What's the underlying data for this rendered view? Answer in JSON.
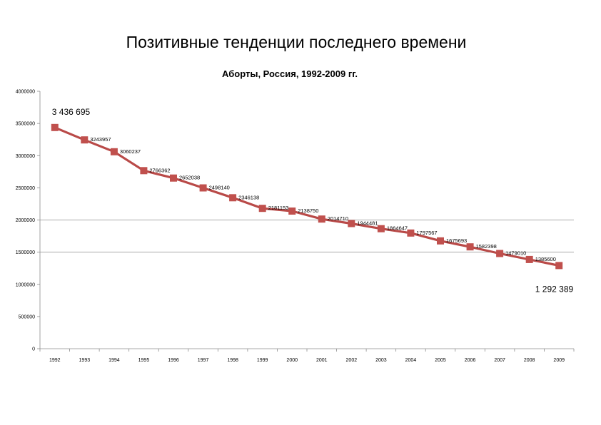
{
  "slide": {
    "title": "Позитивные тенденции последнего времени"
  },
  "colors": {
    "series": "#c0504d",
    "series_line": "#b94a48",
    "gridline": "#8c8c8c",
    "axis": "#8c8c8c"
  },
  "chart_data": {
    "type": "line",
    "title": "Аборты, Россия, 1992-2009 гг.",
    "xlabel": "",
    "ylabel": "",
    "categories": [
      "1992",
      "1993",
      "1994",
      "1995",
      "1996",
      "1997",
      "1998",
      "1999",
      "2000",
      "2001",
      "2002",
      "2003",
      "2004",
      "2005",
      "2006",
      "2007",
      "2008",
      "2009"
    ],
    "series": [
      {
        "values": [
          3436695,
          3243957,
          3060237,
          2766362,
          2652038,
          2498140,
          2346138,
          2181153,
          2138750,
          2014710,
          1944481,
          1864647,
          1797567,
          1675693,
          1582398,
          1479010,
          1385600,
          1292389
        ],
        "data_labels": [
          "",
          "3243957",
          "3060237",
          "2766362",
          "2652038",
          "2498140",
          "2346138",
          "2181153",
          "2138750",
          "2014710",
          "1944481",
          "1864647",
          "1797567",
          "1675693",
          "1582398",
          "1479010",
          "1385600",
          ""
        ],
        "marker": "square"
      }
    ],
    "ylim": [
      0,
      4000000
    ],
    "yticks": [
      0,
      500000,
      1000000,
      1500000,
      2000000,
      2500000,
      3000000,
      3500000,
      4000000
    ],
    "ytick_labels": [
      "0",
      "500000",
      "1000000",
      "1500000",
      "2000000",
      "2500000",
      "3000000",
      "3500000",
      "4000000"
    ],
    "gridlines": [
      1500000,
      2000000
    ],
    "legend": "none",
    "annotations": {
      "first": "3 436 695",
      "last": "1 292 389"
    }
  }
}
